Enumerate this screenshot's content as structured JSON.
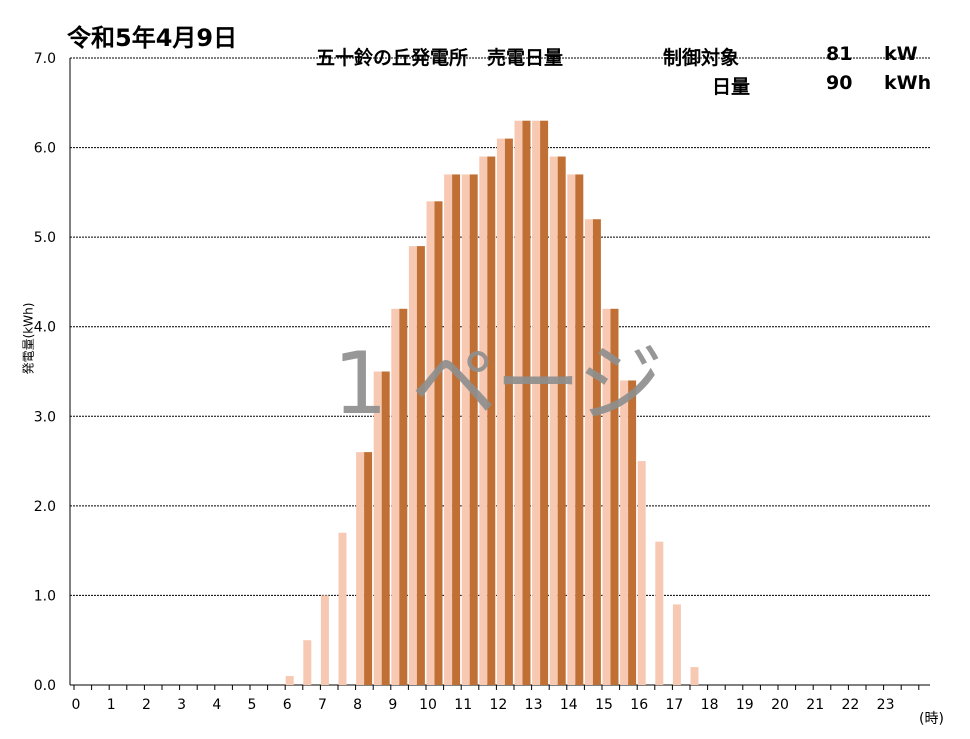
{
  "header": {
    "date": "令和5年4月9日",
    "plant_line": "五十鈴の丘発電所　売電日量",
    "control_label": "制御対象",
    "control_value": "81",
    "control_unit": "kW",
    "daily_label": "日量",
    "daily_value": "90",
    "daily_unit": "kWh"
  },
  "watermark": "1 ページ",
  "colors": {
    "light_bar": "#f7c9b3",
    "dark_bar": "#c07035",
    "grid": "#000000"
  },
  "chart_data": {
    "type": "bar",
    "title": "",
    "ylabel": "発電量(kWh)",
    "xlabel": "(時)",
    "ylim": [
      0,
      7
    ],
    "yticks": [
      "0.0",
      "1.0",
      "2.0",
      "3.0",
      "4.0",
      "5.0",
      "6.0",
      "7.0"
    ],
    "xticks": [
      "0",
      "1",
      "2",
      "3",
      "4",
      "5",
      "6",
      "7",
      "8",
      "9",
      "10",
      "11",
      "12",
      "13",
      "14",
      "15",
      "16",
      "17",
      "18",
      "19",
      "20",
      "21",
      "22",
      "23"
    ],
    "grid": true,
    "slots_per_hour": 2,
    "series": [
      {
        "style": "light",
        "values": [
          0,
          0,
          0,
          0,
          0,
          0,
          0,
          0,
          0,
          0,
          0,
          0,
          0.1,
          0.5,
          1.0,
          1.7,
          2.6,
          3.5,
          4.2,
          4.9,
          5.4,
          5.7,
          5.7,
          5.9,
          6.1,
          6.3,
          6.3,
          5.9,
          5.7,
          5.2,
          4.2,
          3.4,
          2.5,
          1.6,
          0.9,
          0.2,
          0,
          0,
          0,
          0,
          0,
          0,
          0,
          0,
          0,
          0,
          0,
          0
        ]
      },
      {
        "style": "dark",
        "values": [
          0,
          0,
          0,
          0,
          0,
          0,
          0,
          0,
          0,
          0,
          0,
          0,
          0,
          0,
          0,
          0,
          2.6,
          3.5,
          4.2,
          4.9,
          5.4,
          5.7,
          5.7,
          5.9,
          6.1,
          6.3,
          6.3,
          5.9,
          5.7,
          5.2,
          4.2,
          3.4,
          0,
          0,
          0,
          0,
          0,
          0,
          0,
          0,
          0,
          0,
          0,
          0,
          0,
          0,
          0,
          0
        ]
      }
    ]
  }
}
